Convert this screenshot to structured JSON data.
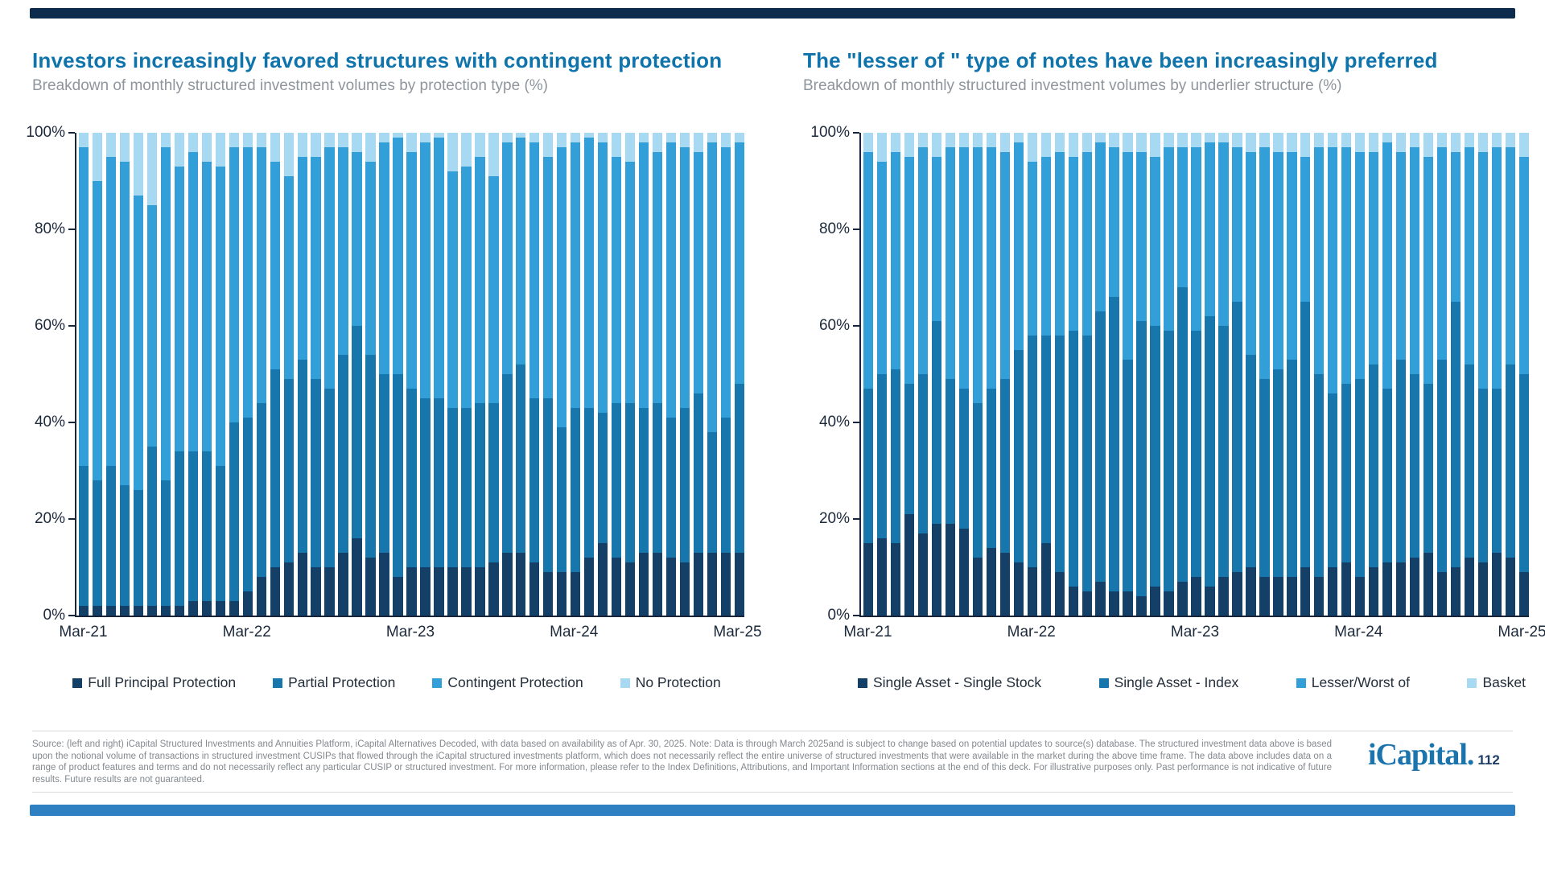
{
  "page": {
    "top_bar_color": "#0D2B4C",
    "bottom_bar_color": "#2E80C3",
    "background_color": "#FFFFFF"
  },
  "chart_data": [
    {
      "type": "bar",
      "stacked": true,
      "title": "Investors increasingly favored structures with contingent protection",
      "subtitle": "Breakdown of monthly structured investment volumes by protection type (%)",
      "xlabel": "",
      "ylabel": "",
      "ylim": [
        0,
        100
      ],
      "grid": false,
      "legend_position": "bottom",
      "y_ticks": [
        "0%",
        "20%",
        "40%",
        "60%",
        "80%",
        "100%"
      ],
      "x_tick_labels": [
        "Mar-21",
        "Mar-22",
        "Mar-23",
        "Mar-24",
        "Mar-25"
      ],
      "x_tick_indices": [
        0,
        12,
        24,
        36,
        48
      ],
      "categories": [
        "Mar-21",
        "Apr-21",
        "May-21",
        "Jun-21",
        "Jul-21",
        "Aug-21",
        "Sep-21",
        "Oct-21",
        "Nov-21",
        "Dec-21",
        "Jan-22",
        "Feb-22",
        "Mar-22",
        "Apr-22",
        "May-22",
        "Jun-22",
        "Jul-22",
        "Aug-22",
        "Sep-22",
        "Oct-22",
        "Nov-22",
        "Dec-22",
        "Jan-23",
        "Feb-23",
        "Mar-23",
        "Apr-23",
        "May-23",
        "Jun-23",
        "Jul-23",
        "Aug-23",
        "Sep-23",
        "Oct-23",
        "Nov-23",
        "Dec-23",
        "Jan-24",
        "Feb-24",
        "Mar-24",
        "Apr-24",
        "May-24",
        "Jun-24",
        "Jul-24",
        "Aug-24",
        "Sep-24",
        "Oct-24",
        "Nov-24",
        "Dec-24",
        "Jan-25",
        "Feb-25",
        "Mar-25"
      ],
      "series": [
        {
          "name": "Full Principal Protection",
          "color": "#143F66",
          "values": [
            2,
            2,
            2,
            2,
            2,
            2,
            2,
            2,
            3,
            3,
            3,
            3,
            5,
            8,
            10,
            11,
            13,
            10,
            10,
            13,
            16,
            12,
            13,
            8,
            10,
            10,
            10,
            10,
            10,
            10,
            11,
            13,
            13,
            11,
            9,
            9,
            9,
            12,
            15,
            12,
            11,
            13,
            13,
            12,
            11,
            13,
            13,
            13,
            13
          ]
        },
        {
          "name": "Partial Protection",
          "color": "#1777AD",
          "values": [
            29,
            26,
            29,
            25,
            24,
            33,
            26,
            32,
            31,
            31,
            28,
            37,
            36,
            36,
            41,
            38,
            40,
            39,
            37,
            41,
            44,
            42,
            37,
            42,
            37,
            35,
            35,
            33,
            33,
            34,
            33,
            37,
            39,
            34,
            36,
            30,
            34,
            31,
            27,
            32,
            33,
            30,
            31,
            29,
            32,
            33,
            25,
            28,
            35
          ]
        },
        {
          "name": "Contingent Protection",
          "color": "#339FD9",
          "values": [
            66,
            62,
            64,
            67,
            61,
            50,
            69,
            59,
            62,
            60,
            62,
            57,
            56,
            53,
            43,
            42,
            42,
            46,
            50,
            43,
            36,
            40,
            48,
            49,
            49,
            53,
            54,
            49,
            50,
            51,
            47,
            48,
            47,
            53,
            50,
            58,
            55,
            56,
            56,
            51,
            50,
            55,
            52,
            57,
            54,
            50,
            60,
            56,
            50
          ]
        },
        {
          "name": "No Protection",
          "color": "#A7D9F2",
          "values": [
            3,
            10,
            5,
            6,
            13,
            15,
            3,
            7,
            4,
            6,
            7,
            3,
            3,
            3,
            6,
            9,
            5,
            5,
            3,
            3,
            4,
            6,
            2,
            1,
            4,
            2,
            1,
            8,
            7,
            5,
            9,
            2,
            1,
            2,
            5,
            3,
            2,
            1,
            2,
            5,
            6,
            2,
            4,
            2,
            3,
            4,
            2,
            3,
            2
          ]
        }
      ]
    },
    {
      "type": "bar",
      "stacked": true,
      "title": "The \"lesser of \" type of notes have been increasingly preferred",
      "subtitle": "Breakdown of monthly structured investment volumes by underlier structure (%)",
      "xlabel": "",
      "ylabel": "",
      "ylim": [
        0,
        100
      ],
      "grid": false,
      "legend_position": "bottom",
      "y_ticks": [
        "0%",
        "20%",
        "40%",
        "60%",
        "80%",
        "100%"
      ],
      "x_tick_labels": [
        "Mar-21",
        "Mar-22",
        "Mar-23",
        "Mar-24",
        "Mar-25"
      ],
      "x_tick_indices": [
        0,
        12,
        24,
        36,
        48
      ],
      "categories": [
        "Mar-21",
        "Apr-21",
        "May-21",
        "Jun-21",
        "Jul-21",
        "Aug-21",
        "Sep-21",
        "Oct-21",
        "Nov-21",
        "Dec-21",
        "Jan-22",
        "Feb-22",
        "Mar-22",
        "Apr-22",
        "May-22",
        "Jun-22",
        "Jul-22",
        "Aug-22",
        "Sep-22",
        "Oct-22",
        "Nov-22",
        "Dec-22",
        "Jan-23",
        "Feb-23",
        "Mar-23",
        "Apr-23",
        "May-23",
        "Jun-23",
        "Jul-23",
        "Aug-23",
        "Sep-23",
        "Oct-23",
        "Nov-23",
        "Dec-23",
        "Jan-24",
        "Feb-24",
        "Mar-24",
        "Apr-24",
        "May-24",
        "Jun-24",
        "Jul-24",
        "Aug-24",
        "Sep-24",
        "Oct-24",
        "Nov-24",
        "Dec-24",
        "Jan-25",
        "Feb-25",
        "Mar-25"
      ],
      "series": [
        {
          "name": "Single Asset - Single Stock",
          "color": "#143F66",
          "values": [
            15,
            16,
            15,
            21,
            17,
            19,
            19,
            18,
            12,
            14,
            13,
            11,
            10,
            15,
            9,
            6,
            5,
            7,
            5,
            5,
            4,
            6,
            5,
            7,
            8,
            6,
            8,
            9,
            10,
            8,
            8,
            8,
            10,
            8,
            10,
            11,
            8,
            10,
            11,
            11,
            12,
            13,
            9,
            10,
            12,
            11,
            13,
            12,
            9
          ]
        },
        {
          "name": "Single Asset - Index",
          "color": "#1777AD",
          "values": [
            32,
            34,
            36,
            27,
            33,
            42,
            30,
            29,
            32,
            33,
            36,
            44,
            48,
            43,
            49,
            53,
            53,
            56,
            61,
            48,
            57,
            54,
            54,
            61,
            51,
            56,
            52,
            56,
            44,
            41,
            43,
            45,
            55,
            42,
            36,
            37,
            41,
            42,
            36,
            42,
            38,
            35,
            44,
            55,
            40,
            36,
            34,
            40,
            41
          ]
        },
        {
          "name": "Lesser/Worst of",
          "color": "#339FD9",
          "values": [
            49,
            44,
            45,
            47,
            47,
            34,
            48,
            50,
            53,
            50,
            47,
            43,
            36,
            37,
            38,
            36,
            38,
            35,
            31,
            43,
            35,
            35,
            38,
            29,
            38,
            36,
            38,
            32,
            42,
            48,
            45,
            43,
            30,
            47,
            51,
            49,
            47,
            44,
            51,
            43,
            47,
            47,
            44,
            31,
            45,
            49,
            50,
            45,
            45
          ]
        },
        {
          "name": "Basket",
          "color": "#A7D9F2",
          "values": [
            4,
            6,
            4,
            5,
            3,
            5,
            3,
            3,
            3,
            3,
            4,
            2,
            6,
            5,
            4,
            5,
            4,
            2,
            3,
            4,
            4,
            5,
            3,
            3,
            3,
            2,
            2,
            3,
            4,
            3,
            4,
            4,
            5,
            3,
            3,
            3,
            4,
            4,
            2,
            4,
            3,
            5,
            3,
            4,
            3,
            4,
            3,
            3,
            5
          ]
        }
      ]
    }
  ],
  "footer": {
    "source_text": "Source: (left and right) iCapital Structured Investments and Annuities Platform, iCapital Alternatives Decoded, with data based on availability as of Apr. 30, 2025. Note: Data is through March 2025and is subject to change based on potential updates to source(s) database. The structured investment data above is based upon the notional volume of transactions in structured investment CUSIPs that flowed through the iCapital structured investments platform, which does not necessarily reflect the entire universe of structured investments that were available in the market during the above time frame. The data above includes data on a range of product features and terms and do not necessarily reflect any particular CUSIP or structured investment. For more information, please refer to the Index Definitions, Attributions, and Important Information sections at the end of this deck. For illustrative purposes only. Past performance is not indicative of future results. Future results are not guaranteed.",
    "logo_text": "iCapital.",
    "page_number": "112"
  }
}
